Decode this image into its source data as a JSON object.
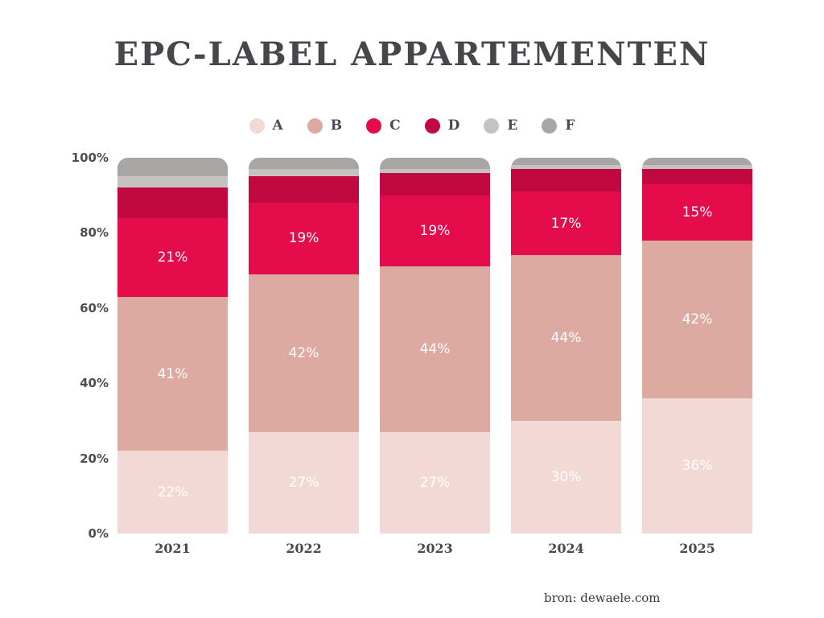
{
  "title": "EPC-LABEL APPARTEMENTEN",
  "source": "bron: dewaele.com",
  "colors": {
    "background": "#ffffff",
    "title_text": "#45474a",
    "axis_text": "#4d4e53",
    "year_text": "#4a4b4e",
    "bar_label_text": "#ffffff"
  },
  "chart_data": {
    "type": "bar",
    "stacked": true,
    "title": "EPC-LABEL APPARTEMENTEN",
    "categories": [
      "2021",
      "2022",
      "2023",
      "2024",
      "2025"
    ],
    "series": [
      {
        "name": "A",
        "color": "#f2d9d5",
        "values": [
          22,
          27,
          27,
          30,
          36
        ],
        "labels_shown": true
      },
      {
        "name": "B",
        "color": "#dcaaa1",
        "values": [
          41,
          42,
          44,
          44,
          42
        ],
        "labels_shown": true
      },
      {
        "name": "C",
        "color": "#e50c4c",
        "values": [
          21,
          19,
          19,
          17,
          15
        ],
        "labels_shown": true
      },
      {
        "name": "D",
        "color": "#c10840",
        "values": [
          8,
          7,
          6,
          6,
          4
        ],
        "labels_shown": false,
        "values_estimated": true
      },
      {
        "name": "E",
        "color": "#c5c2c1",
        "values": [
          3,
          2,
          1,
          1,
          1
        ],
        "labels_shown": false,
        "values_estimated": true
      },
      {
        "name": "F",
        "color": "#a7a6a4",
        "values": [
          5,
          3,
          3,
          2,
          2
        ],
        "labels_shown": false,
        "values_estimated": true
      }
    ],
    "bar_label_format": "{value}%",
    "yticks": [
      {
        "value": 0,
        "label": "0%"
      },
      {
        "value": 20,
        "label": "20%"
      },
      {
        "value": 40,
        "label": "40%"
      },
      {
        "value": 60,
        "label": "60%"
      },
      {
        "value": 80,
        "label": "80%"
      },
      {
        "value": 100,
        "label": "100%"
      }
    ],
    "ylim": [
      0,
      100
    ],
    "grid": false,
    "legend_position": "top-center"
  }
}
